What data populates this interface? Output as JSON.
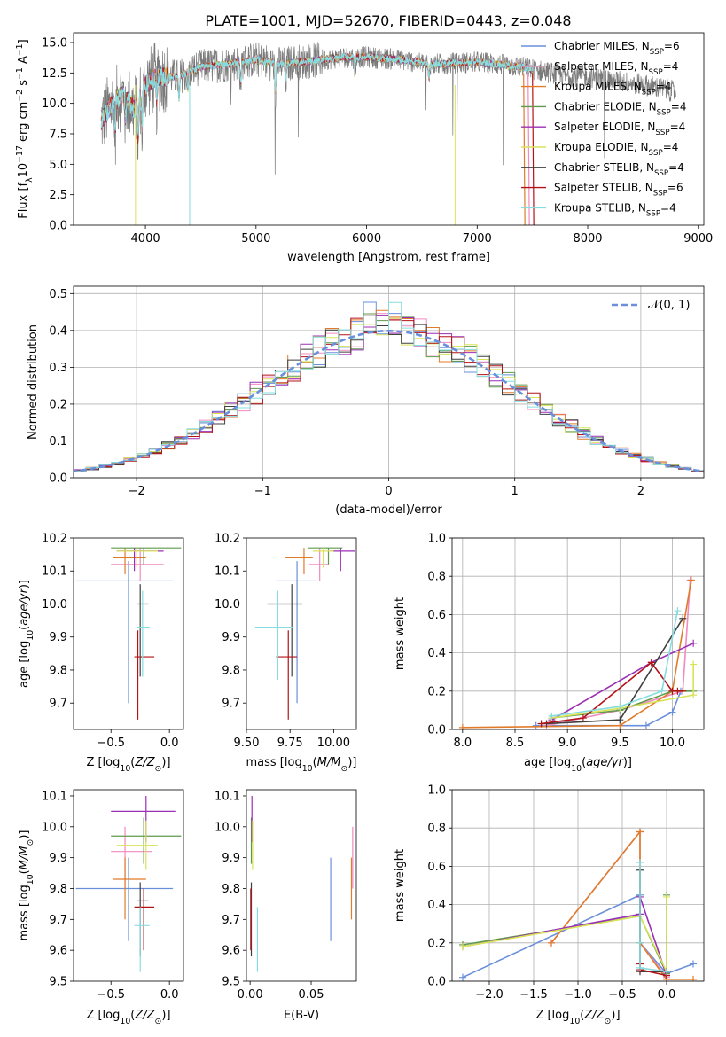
{
  "title": "PLATE=1001, MJD=52670, FIBERID=0443, z=0.048",
  "colors": {
    "s0": "#6a8fdb",
    "s1": "#f08ac0",
    "s2": "#e07b2a",
    "s3": "#5f9a4a",
    "s4": "#9b2fb5",
    "s5": "#d8e35a",
    "s6": "#3f3f3f",
    "s7": "#b31217",
    "s8": "#86dde0"
  },
  "chart_data": [
    {
      "id": "spectrum",
      "type": "line",
      "xlabel": "wavelength [Angstrom, rest frame]",
      "ylabel": "Flux [f_λ10^-17 erg cm^-2 s^-1 A^-1]",
      "xlim": [
        3350,
        9050
      ],
      "ylim": [
        0,
        15.8
      ],
      "xticks": [
        4000,
        5000,
        6000,
        7000,
        8000,
        9000
      ],
      "yticks": [
        0.0,
        2.5,
        5.0,
        7.5,
        10.0,
        12.5,
        15.0
      ],
      "legend_placement": "right",
      "series": [
        {
          "name": "Chabrier MILES, N",
          "sub": "SSP",
          "eq": "=6"
        },
        {
          "name": "Salpeter MILES, N",
          "sub": "SSP",
          "eq": "=4"
        },
        {
          "name": "Kroupa MILES, N",
          "sub": "SSP",
          "eq": "=4"
        },
        {
          "name": "Chabrier ELODIE, N",
          "sub": "SSP",
          "eq": "=4"
        },
        {
          "name": "Salpeter ELODIE, N",
          "sub": "SSP",
          "eq": "=4"
        },
        {
          "name": "Kroupa ELODIE, N",
          "sub": "SSP",
          "eq": "=4"
        },
        {
          "name": "Chabrier STELIB, N",
          "sub": "SSP",
          "eq": "=4"
        },
        {
          "name": "Salpeter STELIB, N",
          "sub": "SSP",
          "eq": "=6"
        },
        {
          "name": "Kroupa STELIB, N",
          "sub": "SSP",
          "eq": "=4"
        }
      ],
      "continuum": {
        "x": [
          3600,
          3700,
          3800,
          3900,
          4000,
          4100,
          4300,
          4500,
          4800,
          5000,
          5200,
          5500,
          5800,
          6000,
          6300,
          6600,
          7000,
          7400,
          7500,
          7800,
          8000,
          8300,
          8600,
          8800
        ],
        "y": [
          8.5,
          10.0,
          10.8,
          9.5,
          11.5,
          12.2,
          12.2,
          13.0,
          13.3,
          13.6,
          13.2,
          13.5,
          13.8,
          13.8,
          13.6,
          13.2,
          13.4,
          13.0,
          12.8,
          12.3,
          12.2,
          11.8,
          11.4,
          10.9
        ]
      },
      "fit_end": {
        "x": [
          7420,
          7420,
          7420,
          7420,
          7500,
          7500,
          7500,
          7500,
          7500
        ],
        "note": ""
      }
    },
    {
      "id": "residuals",
      "type": "line",
      "xlabel": "(data-model)/error",
      "ylabel": "Normed distribution",
      "xlim": [
        -2.5,
        2.5
      ],
      "ylim": [
        0,
        0.52
      ],
      "xticks": [
        -2,
        -1,
        0,
        1,
        2
      ],
      "yticks": [
        0.0,
        0.1,
        0.2,
        0.3,
        0.4,
        0.5
      ],
      "reference": {
        "name": "𝒩(0, 1)",
        "mu": 0,
        "sigma": 1
      },
      "bin_width": 0.1,
      "legend_placement": "top-right"
    },
    {
      "id": "age_vs_Z",
      "type": "scatter",
      "xlabel": "Z [log10(Z/Z⊙)]",
      "ylabel": "age [log10(age/yr)]",
      "xlim": [
        -0.82,
        0.12
      ],
      "ylim": [
        9.62,
        10.2
      ],
      "xticks": [
        -0.5,
        0.0
      ],
      "yticks": [
        9.7,
        9.8,
        9.9,
        10.0,
        10.1,
        10.2
      ],
      "points": [
        {
          "x": -0.35,
          "y": 10.07,
          "xlo": -0.8,
          "xhi": 0.03,
          "ylo": 9.7,
          "yhi": 10.13
        },
        {
          "x": -0.25,
          "y": 10.12,
          "xlo": -0.5,
          "xhi": -0.05,
          "ylo": 10.07,
          "yhi": 10.17
        },
        {
          "x": -0.38,
          "y": 10.14,
          "xlo": -0.48,
          "xhi": -0.2,
          "ylo": 10.09,
          "yhi": 10.17
        },
        {
          "x": -0.22,
          "y": 10.17,
          "xlo": -0.5,
          "xhi": 0.1,
          "ylo": 10.12,
          "yhi": 10.17
        },
        {
          "x": -0.3,
          "y": 10.16,
          "xlo": -0.45,
          "xhi": -0.05,
          "ylo": 10.1,
          "yhi": 10.17
        },
        {
          "x": -0.28,
          "y": 10.16,
          "xlo": -0.45,
          "xhi": -0.1,
          "ylo": 10.11,
          "yhi": 10.17
        },
        {
          "x": -0.25,
          "y": 10.0,
          "xlo": -0.28,
          "xhi": -0.18,
          "ylo": 9.78,
          "yhi": 10.06
        },
        {
          "x": -0.27,
          "y": 9.84,
          "xlo": -0.3,
          "xhi": -0.13,
          "ylo": 9.65,
          "yhi": 9.92
        },
        {
          "x": -0.23,
          "y": 9.93,
          "xlo": -0.28,
          "xhi": -0.17,
          "ylo": 9.78,
          "yhi": 10.04
        }
      ]
    },
    {
      "id": "age_vs_mass",
      "type": "scatter",
      "xlabel": "mass [log10(M/M⊙)]",
      "ylabel": "",
      "xlim": [
        9.5,
        10.13
      ],
      "ylim": [
        9.62,
        10.2
      ],
      "xticks": [
        9.5,
        9.75,
        10.0
      ],
      "yticks": [
        9.7,
        9.8,
        9.9,
        10.0,
        10.1,
        10.2
      ],
      "points": [
        {
          "x": 9.79,
          "y": 10.07,
          "xlo": 9.67,
          "xhi": 9.9,
          "ylo": 9.7,
          "yhi": 10.13
        },
        {
          "x": 9.92,
          "y": 10.12,
          "xlo": 9.86,
          "xhi": 9.97,
          "ylo": 10.07,
          "yhi": 10.17
        },
        {
          "x": 9.83,
          "y": 10.14,
          "xlo": 9.72,
          "xhi": 9.88,
          "ylo": 10.09,
          "yhi": 10.17
        },
        {
          "x": 9.97,
          "y": 10.17,
          "xlo": 9.85,
          "xhi": 10.05,
          "ylo": 10.12,
          "yhi": 10.17
        },
        {
          "x": 10.04,
          "y": 10.16,
          "xlo": 9.98,
          "xhi": 10.12,
          "ylo": 10.1,
          "yhi": 10.17
        },
        {
          "x": 9.94,
          "y": 10.16,
          "xlo": 9.88,
          "xhi": 10.0,
          "ylo": 10.11,
          "yhi": 10.17
        },
        {
          "x": 9.76,
          "y": 10.0,
          "xlo": 9.62,
          "xhi": 9.82,
          "ylo": 9.78,
          "yhi": 10.06
        },
        {
          "x": 9.74,
          "y": 9.84,
          "xlo": 9.67,
          "xhi": 9.79,
          "ylo": 9.65,
          "yhi": 9.92
        },
        {
          "x": 9.68,
          "y": 9.93,
          "xlo": 9.55,
          "xhi": 9.77,
          "ylo": 9.77,
          "yhi": 10.04
        }
      ]
    },
    {
      "id": "weight_vs_age",
      "type": "line",
      "xlabel": "age  [log10(age/yr)]",
      "ylabel": "mass weight",
      "xlim": [
        7.9,
        10.3
      ],
      "ylim": [
        0,
        1.0
      ],
      "xticks": [
        8.0,
        8.5,
        9.0,
        9.5,
        10.0
      ],
      "yticks": [
        0.0,
        0.2,
        0.4,
        0.6,
        0.8,
        1.0
      ],
      "series": [
        {
          "x": [
            8.7,
            9.75,
            10.0,
            10.08
          ],
          "y": [
            0.02,
            0.02,
            0.09,
            0.2
          ]
        },
        {
          "x": [
            8.8,
            9.5,
            10.1,
            10.17
          ],
          "y": [
            0.02,
            0.1,
            0.2,
            0.78
          ]
        },
        {
          "x": [
            8.0,
            9.5,
            10.0,
            10.18
          ],
          "y": [
            0.01,
            0.02,
            0.2,
            0.78
          ]
        },
        {
          "x": [
            8.85,
            9.5,
            10.0,
            10.2
          ],
          "y": [
            0.06,
            0.1,
            0.2,
            0.2
          ]
        },
        {
          "x": [
            8.85,
            9.8,
            10.2
          ],
          "y": [
            0.05,
            0.35,
            0.45
          ]
        },
        {
          "x": [
            8.85,
            9.5,
            10.2,
            10.2
          ],
          "y": [
            0.06,
            0.11,
            0.18,
            0.34
          ]
        },
        {
          "x": [
            8.8,
            9.5,
            10.1
          ],
          "y": [
            0.03,
            0.05,
            0.58
          ]
        },
        {
          "x": [
            8.75,
            9.15,
            9.8,
            10.0,
            10.05,
            10.1
          ],
          "y": [
            0.03,
            0.06,
            0.35,
            0.2,
            0.2,
            0.2
          ]
        },
        {
          "x": [
            8.85,
            9.5,
            9.9,
            10.05
          ],
          "y": [
            0.07,
            0.12,
            0.2,
            0.62
          ]
        }
      ]
    },
    {
      "id": "mass_vs_Z",
      "type": "scatter",
      "xlabel": "Z [log10(Z/Z⊙)]",
      "ylabel": "mass [log10(M/M⊙)]",
      "xlim": [
        -0.82,
        0.12
      ],
      "ylim": [
        9.5,
        10.12
      ],
      "xticks": [
        -0.5,
        0.0
      ],
      "yticks": [
        9.5,
        9.6,
        9.7,
        9.8,
        9.9,
        10.0,
        10.1
      ],
      "points": [
        {
          "x": -0.35,
          "y": 9.8,
          "xlo": -0.8,
          "xhi": 0.03,
          "ylo": 9.63,
          "yhi": 9.9
        },
        {
          "x": -0.38,
          "y": 9.92,
          "xlo": -0.5,
          "xhi": -0.15,
          "ylo": 9.8,
          "yhi": 10.0
        },
        {
          "x": -0.38,
          "y": 9.83,
          "xlo": -0.48,
          "xhi": -0.2,
          "ylo": 9.7,
          "yhi": 9.9
        },
        {
          "x": -0.22,
          "y": 9.97,
          "xlo": -0.5,
          "xhi": 0.1,
          "ylo": 9.88,
          "yhi": 10.03
        },
        {
          "x": -0.2,
          "y": 10.05,
          "xlo": -0.5,
          "xhi": 0.05,
          "ylo": 9.95,
          "yhi": 10.1
        },
        {
          "x": -0.2,
          "y": 9.94,
          "xlo": -0.45,
          "xhi": -0.1,
          "ylo": 9.86,
          "yhi": 10.02
        },
        {
          "x": -0.25,
          "y": 9.76,
          "xlo": -0.28,
          "xhi": -0.18,
          "ylo": 9.58,
          "yhi": 9.82
        },
        {
          "x": -0.22,
          "y": 9.74,
          "xlo": -0.3,
          "xhi": -0.13,
          "ylo": 9.6,
          "yhi": 9.8
        },
        {
          "x": -0.25,
          "y": 9.68,
          "xlo": -0.3,
          "xhi": -0.17,
          "ylo": 9.53,
          "yhi": 9.74
        }
      ]
    },
    {
      "id": "mass_vs_ebv",
      "type": "scatter",
      "xlabel": "E(B-V)",
      "ylabel": "",
      "xlim": [
        -0.003,
        0.087
      ],
      "ylim": [
        9.5,
        10.12
      ],
      "xticks": [
        0.0,
        0.05
      ],
      "xtick_labels": [
        "0.00",
        "0.05"
      ],
      "yticks": [
        9.5,
        9.6,
        9.7,
        9.8,
        9.9,
        10.0,
        10.1
      ],
      "points": [
        {
          "x": 0.066,
          "y": 9.8,
          "ylo": 9.63,
          "yhi": 9.9
        },
        {
          "x": 0.084,
          "y": 9.92,
          "ylo": 9.8,
          "yhi": 10.0
        },
        {
          "x": 0.083,
          "y": 9.83,
          "ylo": 9.7,
          "yhi": 9.9
        },
        {
          "x": 0.001,
          "y": 9.97,
          "ylo": 9.88,
          "yhi": 10.03
        },
        {
          "x": 0.0015,
          "y": 10.05,
          "ylo": 9.95,
          "yhi": 10.1
        },
        {
          "x": 0.002,
          "y": 9.94,
          "ylo": 9.86,
          "yhi": 10.02
        },
        {
          "x": 0.001,
          "y": 9.76,
          "ylo": 9.58,
          "yhi": 9.82
        },
        {
          "x": 0.0005,
          "y": 9.74,
          "ylo": 9.6,
          "yhi": 9.8
        },
        {
          "x": 0.006,
          "y": 9.68,
          "ylo": 9.53,
          "yhi": 9.74
        }
      ]
    },
    {
      "id": "weight_vs_Z",
      "type": "line",
      "xlabel": "Z [log10(Z/Z⊙)]",
      "ylabel": "mass weight",
      "xlim": [
        -2.42,
        0.42
      ],
      "ylim": [
        0,
        1.0
      ],
      "xticks": [
        -2.0,
        -1.5,
        -1.0,
        -0.5,
        0.0
      ],
      "yticks": [
        0.0,
        0.2,
        0.4,
        0.6,
        0.8,
        1.0
      ],
      "series": [
        {
          "x": [
            -2.3,
            -0.3,
            -0.3,
            0.0,
            0.3
          ],
          "y": [
            0.02,
            0.45,
            0.2,
            0.04,
            0.09
          ]
        },
        {
          "x": [
            -1.3,
            -0.3,
            -0.3,
            0.0
          ],
          "y": [
            0.2,
            0.78,
            0.2,
            0.02
          ]
        },
        {
          "x": [
            -1.3,
            -0.3,
            -0.3,
            0.0,
            0.3
          ],
          "y": [
            0.2,
            0.78,
            0.2,
            0.01,
            0.01
          ]
        },
        {
          "x": [
            -2.3,
            -0.3,
            0.0,
            0.0
          ],
          "y": [
            0.19,
            0.34,
            0.04,
            0.45
          ]
        },
        {
          "x": [
            -2.3,
            -0.3,
            -0.3,
            0.0
          ],
          "y": [
            0.18,
            0.35,
            0.44,
            0.03
          ]
        },
        {
          "x": [
            -2.3,
            -0.3,
            0.0,
            0.0
          ],
          "y": [
            0.18,
            0.34,
            0.05,
            0.44
          ]
        },
        {
          "x": [
            -0.3,
            -0.3,
            0.0,
            0.0
          ],
          "y": [
            0.58,
            0.05,
            0.05,
            0.03
          ]
        },
        {
          "x": [
            -0.3,
            -0.3,
            0.0,
            0.0
          ],
          "y": [
            0.09,
            0.06,
            0.03,
            0.05
          ]
        },
        {
          "x": [
            -0.3,
            -0.3,
            -0.3,
            0.0
          ],
          "y": [
            0.62,
            0.2,
            0.07,
            0.05
          ]
        }
      ]
    }
  ]
}
